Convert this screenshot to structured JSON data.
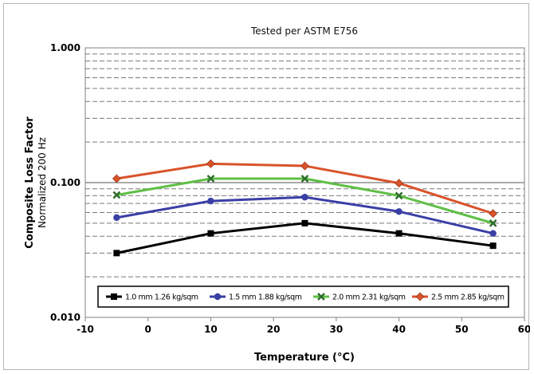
{
  "chart_data": {
    "type": "line",
    "title": "Tested per ASTM E756",
    "ylabel": "Composite Loss Factor",
    "ylabel_sub": "Normalized 200 Hz",
    "xlabel": "Temperature (°C)",
    "xlim": [
      -10,
      60
    ],
    "ylim": [
      0.01,
      1.0
    ],
    "yscale": "log",
    "x_ticks": [
      "-10",
      "0",
      "10",
      "20",
      "30",
      "40",
      "50",
      "60"
    ],
    "y_ticks": [
      "0.010",
      "0.100",
      "1.000"
    ],
    "grid": "horizontal, dashed minor lines, solid major lines",
    "legend_position": "bottom-inside",
    "x": [
      -5,
      10,
      25,
      40,
      55
    ],
    "series": [
      {
        "name": "1.0 mm 1.26 kg/sqm",
        "color": "#000000",
        "marker": "square",
        "values": [
          0.03,
          0.042,
          0.05,
          0.042,
          0.034
        ]
      },
      {
        "name": "1.5 mm 1.88 kg/sqm",
        "color": "#3a3fa6",
        "marker": "circle",
        "values": [
          0.055,
          0.073,
          0.078,
          0.061,
          0.042
        ]
      },
      {
        "name": "2.0 mm 2.31 kg/sqm",
        "color": "#5fbf46",
        "marker": "x",
        "values": [
          0.081,
          0.107,
          0.107,
          0.08,
          0.05
        ]
      },
      {
        "name": "2.5 mm 2.85 kg/sqm",
        "color": "#d9532b",
        "marker": "diamond",
        "values": [
          0.107,
          0.138,
          0.133,
          0.099,
          0.059
        ]
      }
    ]
  }
}
